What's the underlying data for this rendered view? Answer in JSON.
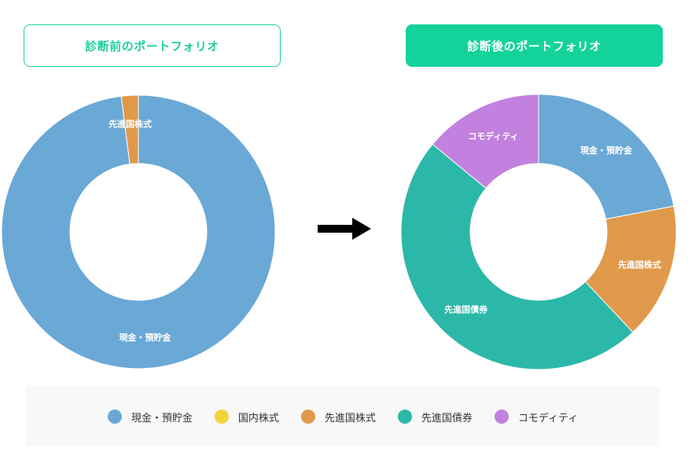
{
  "chart_data": [
    {
      "type": "pie",
      "title": "診断前のポートフォリオ",
      "donut": true,
      "categories": [
        "現金・預貯金",
        "国内株式",
        "先進国株式",
        "先進国債券",
        "コモディティ"
      ],
      "values": [
        98,
        0,
        2,
        0,
        0
      ],
      "colors": [
        "#6aa8d6",
        "#f0d43a",
        "#e0994a",
        "#2bb8a8",
        "#c281de"
      ]
    },
    {
      "type": "pie",
      "title": "診断後のポートフォリオ",
      "donut": true,
      "categories": [
        "現金・預貯金",
        "国内株式",
        "先進国株式",
        "先進国債券",
        "コモディティ"
      ],
      "values": [
        22,
        0,
        16,
        48,
        14
      ],
      "colors": [
        "#6aa8d6",
        "#f0d43a",
        "#e0994a",
        "#2bb8a8",
        "#c281de"
      ]
    }
  ],
  "legend": {
    "placement": "bottom",
    "items": [
      {
        "label": "現金・預貯金",
        "color": "#6aa8d6"
      },
      {
        "label": "国内株式",
        "color": "#f0d43a"
      },
      {
        "label": "先進国株式",
        "color": "#e0994a"
      },
      {
        "label": "先進国債券",
        "color": "#2bb8a8"
      },
      {
        "label": "コモディティ",
        "color": "#c281de"
      }
    ]
  },
  "arrow_icon": "right-arrow-icon"
}
